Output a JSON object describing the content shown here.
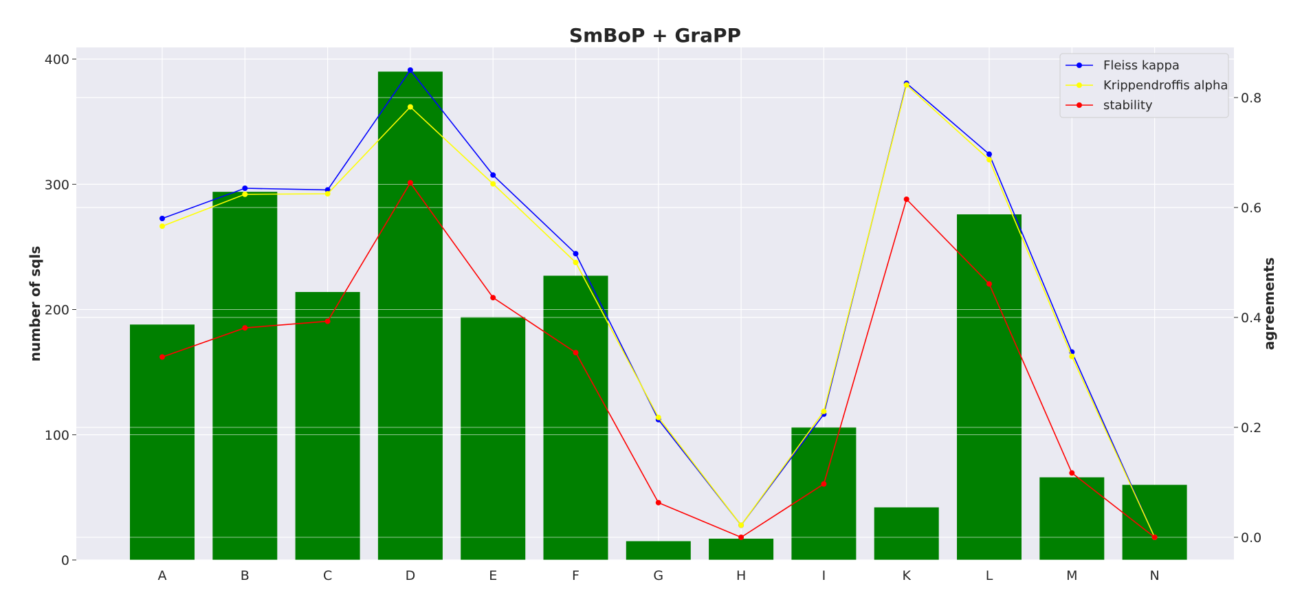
{
  "chart_data": {
    "type": "bar",
    "title": "SmBoP + GraPP",
    "categories": [
      "A",
      "B",
      "C",
      "D",
      "E",
      "F",
      "G",
      "H",
      "I",
      "K",
      "L",
      "M",
      "N"
    ],
    "bars": {
      "values": [
        188,
        294,
        214,
        390,
        194,
        227,
        15,
        17,
        106,
        42,
        276,
        66,
        60
      ],
      "color": "#008000"
    },
    "ylabel_left": "number of sqls",
    "ylabel_right": "agreements",
    "ylim_left": [
      0,
      400
    ],
    "yticks_left": [
      0,
      100,
      200,
      300,
      400
    ],
    "yticks_right": [
      0.0,
      0.2,
      0.4,
      0.6,
      0.8
    ],
    "series": [
      {
        "name": "Fleiss kappa",
        "color": "#0000ff",
        "values": [
          0.58,
          0.635,
          0.632,
          0.85,
          0.659,
          0.516,
          0.214,
          0.022,
          0.224,
          0.826,
          0.697,
          0.337,
          0.0
        ]
      },
      {
        "name": "Krippendroffis alpha",
        "color": "#ffff00",
        "values": [
          0.566,
          0.624,
          0.625,
          0.783,
          0.643,
          0.5,
          0.218,
          0.022,
          0.229,
          0.823,
          0.687,
          0.329,
          0.0
        ]
      },
      {
        "name": "stability",
        "color": "#ff0000",
        "values": [
          0.328,
          0.381,
          0.393,
          0.645,
          0.436,
          0.336,
          0.063,
          0.0,
          0.097,
          0.615,
          0.461,
          0.117,
          0.0
        ]
      }
    ],
    "grid": true,
    "legend": "top-right"
  }
}
